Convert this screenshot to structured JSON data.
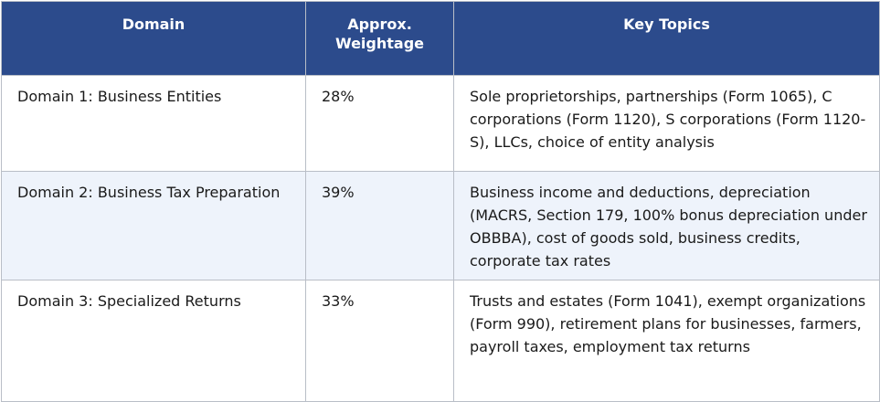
{
  "table": {
    "headers": [
      "Domain",
      "Approx. Weightage",
      "Key Topics"
    ],
    "rows": [
      [
        "Domain 1: Business Entities",
        "28%",
        "Sole proprietorships, partnerships (Form 1065), C corporations (Form 1120), S corporations (Form 1120-S), LLCs, choice of entity analysis"
      ],
      [
        "Domain 2: Business Tax Preparation",
        "39%",
        "Business income and deductions, depreciation (MACRS, Section 179, 100% bonus depreciation under OBBBA), cost of goods sold, business credits, corporate tax rates"
      ],
      [
        "Domain 3: Specialized Returns",
        "33%",
        "Trusts and estates (Form 1041), exempt organizations (Form 990), retirement plans for businesses, farmers, payroll taxes, employment tax returns"
      ]
    ]
  }
}
